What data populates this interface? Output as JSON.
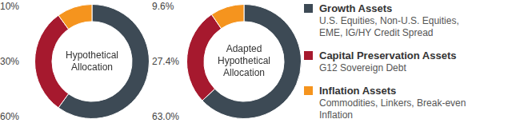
{
  "chart_data": [
    {
      "type": "doughnut",
      "title": "Hypothetical Allocation",
      "categories": [
        "Growth Assets",
        "Capital Preservation Assets",
        "Inflation Assets"
      ],
      "values": [
        60,
        30,
        10
      ],
      "value_labels": [
        "60%",
        "30%",
        "10%"
      ],
      "colors": [
        "#3d4a55",
        "#a6192e",
        "#f5941e"
      ],
      "data_labels": true
    },
    {
      "type": "doughnut",
      "title": "Adapted Hypothetical Allocation",
      "categories": [
        "Growth Assets",
        "Capital Preservation Assets",
        "Inflation Assets"
      ],
      "values": [
        63.0,
        27.4,
        9.6
      ],
      "value_labels": [
        "63.0%",
        "27.4%",
        "9.6%"
      ],
      "colors": [
        "#3d4a55",
        "#a6192e",
        "#f5941e"
      ],
      "data_labels": true,
      "legend": "right",
      "category_descriptions": [
        "U.S. Equities, Non-U.S. Equities, EME, IG/HY Credit Spread",
        "G12 Sovereign Debt",
        "Commodities, Linkers, Break-even Inflation"
      ]
    }
  ]
}
